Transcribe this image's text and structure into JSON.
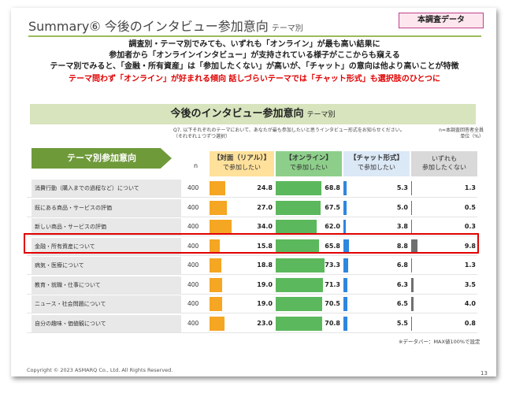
{
  "header": {
    "title": "Summary⑥ 今後のインタビュー参加意向",
    "subtitle": "テーマ別",
    "badge": "本調査データ"
  },
  "summary": {
    "lines": [
      "調査別・テーマ別でみても、いずれも「オンライン」が最も高い結果に",
      "参加者から「オンラインインタビュー」が支持されている様子がここからも窺える",
      "テーマ別でみると、「金融・所有資産」は「参加したくない」が高いが、「チャット」の意向は他より高いことが特徴"
    ],
    "highlight": "テーマ問わず「オンライン」が好まれる傾向 話しづらいテーマでは「チャット形式」も選択肢のひとつに"
  },
  "section": {
    "title": "今後のインタビュー参加意向",
    "subtitle": "テーマ別"
  },
  "question_note": "Q7. 以下それぞれのテーマにおいて、あなたが最も参加したいと思うインタビュー形式をお知らせください。（それぞれ１つずつ選択）",
  "base_note": "n=本調査回答者全員 単位（%）",
  "table": {
    "header_label": "テーマ別参加意向",
    "n_label": "n",
    "columns": [
      {
        "bold": "【対面（リアル）】",
        "sub": "で参加したい"
      },
      {
        "bold": "【オンライン】",
        "sub": "で参加したい"
      },
      {
        "bold": "【チャット形式】",
        "sub": "で参加したい"
      },
      {
        "bold": "いずれも",
        "sub": "参加したくない"
      }
    ],
    "rows": [
      {
        "label": "消費行動（購入までの過程など）について",
        "n": "400",
        "values": [
          "24.8",
          "68.8",
          "5.3",
          "1.3"
        ]
      },
      {
        "label": "既にある商品・サービスの評価",
        "n": "400",
        "values": [
          "27.0",
          "67.5",
          "5.0",
          "0.5"
        ]
      },
      {
        "label": "新しい商品・サービスの評価",
        "n": "400",
        "values": [
          "34.0",
          "62.0",
          "3.8",
          "0.3"
        ]
      },
      {
        "label": "金融・所有資産について",
        "n": "400",
        "values": [
          "15.8",
          "65.8",
          "8.8",
          "9.8"
        ]
      },
      {
        "label": "病気・医療について",
        "n": "400",
        "values": [
          "18.8",
          "73.3",
          "6.8",
          "1.3"
        ]
      },
      {
        "label": "教育・就職・仕事について",
        "n": "400",
        "values": [
          "19.0",
          "71.3",
          "6.3",
          "3.5"
        ]
      },
      {
        "label": "ニュース・社会問題について",
        "n": "400",
        "values": [
          "19.0",
          "70.5",
          "6.5",
          "4.0"
        ]
      },
      {
        "label": "自分の趣味・価値観について",
        "n": "400",
        "values": [
          "23.0",
          "70.8",
          "5.5",
          "0.8"
        ]
      }
    ]
  },
  "databar_note": "※データバー：MAX値100%で設定",
  "copyright": "Copyright © 2023 ASMARQ Co., Ltd. All Rights Reserved.",
  "page_number": "13"
}
